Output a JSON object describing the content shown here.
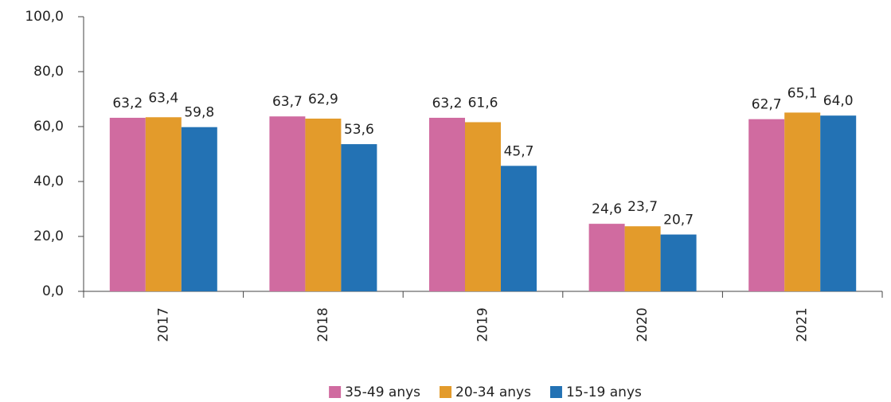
{
  "chart_data": {
    "type": "bar",
    "categories": [
      "2017",
      "2018",
      "2019",
      "2020",
      "2021"
    ],
    "series": [
      {
        "name": "35-49 anys",
        "color": "#d06ba0",
        "values": [
          63.2,
          63.7,
          63.2,
          24.6,
          62.7
        ],
        "value_labels": [
          "63,2",
          "63,7",
          "63,2",
          "24,6",
          "62,7"
        ]
      },
      {
        "name": "20-34 anys",
        "color": "#e39b2b",
        "values": [
          63.4,
          62.9,
          61.6,
          23.7,
          65.1
        ],
        "value_labels": [
          "63,4",
          "62,9",
          "61,6",
          "23,7",
          "65,1"
        ]
      },
      {
        "name": "15-19 anys",
        "color": "#2372b4",
        "values": [
          59.8,
          53.6,
          45.7,
          20.7,
          64.0
        ],
        "value_labels": [
          "59,8",
          "53,6",
          "45,7",
          "20,7",
          "64,0"
        ]
      }
    ],
    "ylim": [
      0,
      100
    ],
    "yticks": [
      {
        "value": 0,
        "label": "0,0"
      },
      {
        "value": 20,
        "label": "20,0"
      },
      {
        "value": 40,
        "label": "40,0"
      },
      {
        "value": 60,
        "label": "60,0"
      },
      {
        "value": 80,
        "label": "80,0"
      },
      {
        "value": 100,
        "label": "100,0"
      }
    ],
    "grid": false,
    "legend": "bottom"
  }
}
